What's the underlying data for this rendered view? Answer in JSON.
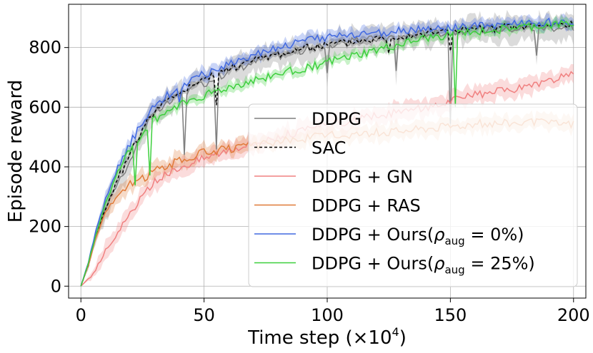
{
  "chart_data": {
    "type": "line",
    "xlabel": "Time step (×10",
    "xlabel_exp": "4",
    "xlabel_close": ")",
    "ylabel": "Episode reward",
    "xlim": [
      -5,
      205
    ],
    "ylim": [
      -40,
      945
    ],
    "x_ticks": [
      0,
      50,
      100,
      150,
      200
    ],
    "y_ticks": [
      0,
      200,
      400,
      600,
      800
    ],
    "x_tick_labels": [
      "0",
      "50",
      "100",
      "150",
      "200"
    ],
    "y_tick_labels": [
      "0",
      "200",
      "400",
      "600",
      "800"
    ],
    "grid": true,
    "legend_position": "center-right",
    "series": [
      {
        "name": "DDPG",
        "color": "#7f7f7f",
        "dash": "",
        "band": 45,
        "anchors": [
          [
            0,
            0
          ],
          [
            3,
            70
          ],
          [
            6,
            170
          ],
          [
            10,
            260
          ],
          [
            15,
            350
          ],
          [
            20,
            420
          ],
          [
            25,
            520
          ],
          [
            30,
            580
          ],
          [
            40,
            640
          ],
          [
            50,
            680
          ],
          [
            60,
            720
          ],
          [
            75,
            765
          ],
          [
            90,
            790
          ],
          [
            100,
            808
          ],
          [
            120,
            830
          ],
          [
            140,
            848
          ],
          [
            160,
            860
          ],
          [
            180,
            865
          ],
          [
            200,
            870
          ]
        ],
        "dips": [
          [
            42,
            200
          ],
          [
            55,
            230
          ],
          [
            100,
            90
          ],
          [
            128,
            120
          ],
          [
            150,
            300
          ],
          [
            185,
            90
          ]
        ]
      },
      {
        "name": "SAC",
        "color": "#000000",
        "dash": "4,3",
        "band": 12,
        "anchors": [
          [
            0,
            0
          ],
          [
            3,
            70
          ],
          [
            6,
            170
          ],
          [
            10,
            260
          ],
          [
            15,
            360
          ],
          [
            20,
            440
          ],
          [
            25,
            530
          ],
          [
            30,
            590
          ],
          [
            40,
            650
          ],
          [
            50,
            690
          ],
          [
            60,
            730
          ],
          [
            75,
            770
          ],
          [
            90,
            795
          ],
          [
            100,
            810
          ],
          [
            120,
            830
          ],
          [
            140,
            850
          ],
          [
            160,
            862
          ],
          [
            180,
            870
          ],
          [
            200,
            880
          ]
        ],
        "dips": [
          [
            55,
            100
          ],
          [
            125,
            60
          ],
          [
            150,
            60
          ]
        ]
      },
      {
        "name": "DDPG + GN",
        "color": "#f08080",
        "dash": "",
        "band": 32,
        "anchors": [
          [
            0,
            0
          ],
          [
            5,
            40
          ],
          [
            10,
            120
          ],
          [
            15,
            180
          ],
          [
            20,
            240
          ],
          [
            25,
            300
          ],
          [
            30,
            350
          ],
          [
            40,
            400
          ],
          [
            50,
            430
          ],
          [
            60,
            460
          ],
          [
            70,
            480
          ],
          [
            80,
            500
          ],
          [
            90,
            520
          ],
          [
            100,
            540
          ],
          [
            120,
            570
          ],
          [
            140,
            600
          ],
          [
            160,
            640
          ],
          [
            180,
            665
          ],
          [
            200,
            710
          ]
        ],
        "dips": []
      },
      {
        "name": "DDPG + RAS",
        "color": "#e07b39",
        "dash": "",
        "band": 28,
        "anchors": [
          [
            0,
            0
          ],
          [
            3,
            70
          ],
          [
            6,
            160
          ],
          [
            10,
            250
          ],
          [
            15,
            300
          ],
          [
            20,
            340
          ],
          [
            25,
            360
          ],
          [
            30,
            390
          ],
          [
            40,
            420
          ],
          [
            50,
            450
          ],
          [
            60,
            460
          ],
          [
            70,
            470
          ],
          [
            80,
            485
          ],
          [
            90,
            495
          ],
          [
            100,
            505
          ],
          [
            120,
            515
          ],
          [
            140,
            530
          ],
          [
            160,
            545
          ],
          [
            180,
            550
          ],
          [
            200,
            545
          ]
        ],
        "dips": []
      },
      {
        "name": "DDPG + Ours(ρ_aug = 0%)",
        "color": "#4169e1",
        "dash": "",
        "band": 22,
        "anchors": [
          [
            0,
            0
          ],
          [
            3,
            80
          ],
          [
            6,
            180
          ],
          [
            10,
            290
          ],
          [
            15,
            400
          ],
          [
            20,
            480
          ],
          [
            25,
            550
          ],
          [
            30,
            610
          ],
          [
            40,
            670
          ],
          [
            50,
            710
          ],
          [
            60,
            745
          ],
          [
            75,
            790
          ],
          [
            90,
            820
          ],
          [
            100,
            835
          ],
          [
            120,
            850
          ],
          [
            140,
            862
          ],
          [
            160,
            870
          ],
          [
            180,
            880
          ],
          [
            200,
            890
          ]
        ],
        "dips": [
          [
            40,
            60
          ]
        ]
      },
      {
        "name": "DDPG + Ours(ρ_aug = 25%)",
        "color": "#3ccf3c",
        "dash": "",
        "band": 18,
        "anchors": [
          [
            0,
            0
          ],
          [
            3,
            75
          ],
          [
            6,
            170
          ],
          [
            10,
            280
          ],
          [
            15,
            380
          ],
          [
            20,
            460
          ],
          [
            25,
            510
          ],
          [
            30,
            560
          ],
          [
            40,
            610
          ],
          [
            50,
            640
          ],
          [
            60,
            665
          ],
          [
            75,
            700
          ],
          [
            90,
            730
          ],
          [
            100,
            750
          ],
          [
            120,
            790
          ],
          [
            140,
            830
          ],
          [
            160,
            855
          ],
          [
            180,
            868
          ],
          [
            200,
            880
          ]
        ],
        "dips": [
          [
            22,
            140
          ],
          [
            28,
            160
          ],
          [
            152,
            240
          ]
        ]
      }
    ]
  },
  "legend": {
    "items": [
      {
        "label": "DDPG",
        "math": false
      },
      {
        "label": "SAC",
        "math": false
      },
      {
        "label": "DDPG + GN",
        "math": false
      },
      {
        "label": "DDPG + RAS",
        "math": false
      },
      {
        "label": "DDPG + Ours(",
        "math": true,
        "sym": "ρ",
        "sub": "aug",
        "rest": " = 0%)"
      },
      {
        "label": "DDPG + Ours(",
        "math": true,
        "sym": "ρ",
        "sub": "aug",
        "rest": " = 25%)"
      }
    ]
  }
}
